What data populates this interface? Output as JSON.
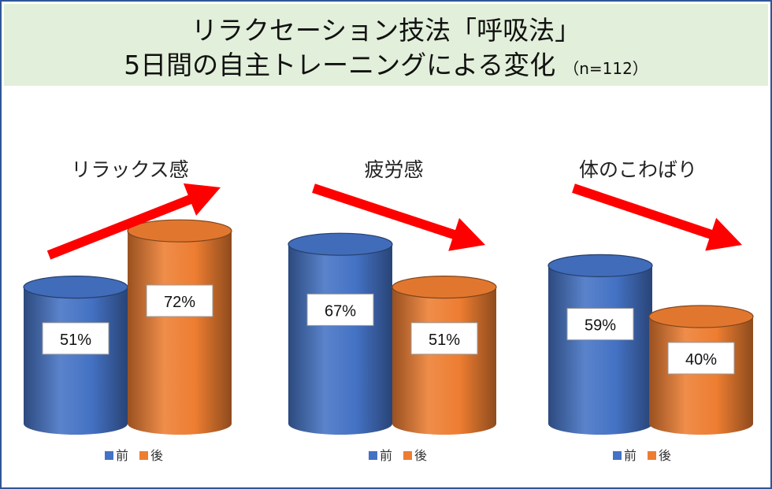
{
  "title": {
    "line1": "リラクセーション技法「呼吸法」",
    "line2": "5日間の自主トレーニングによる変化",
    "sample": "（n=112）"
  },
  "colors": {
    "before": "#4472c4",
    "after": "#ed7d31",
    "arrow": "#ff0000",
    "title_bg": "#e2efda",
    "frame": "#2f5597"
  },
  "chart_data": [
    {
      "type": "bar",
      "title": "リラックス感",
      "categories": [
        "前",
        "後"
      ],
      "values": [
        51,
        72
      ],
      "labels": [
        "51%",
        "72%"
      ],
      "trend": "up",
      "legend": [
        {
          "name": "前",
          "color": "#4472c4"
        },
        {
          "name": "後",
          "color": "#ed7d31"
        }
      ]
    },
    {
      "type": "bar",
      "title": "疲労感",
      "categories": [
        "前",
        "後"
      ],
      "values": [
        67,
        51
      ],
      "labels": [
        "67%",
        "51%"
      ],
      "trend": "down",
      "legend": [
        {
          "name": "前",
          "color": "#4472c4"
        },
        {
          "name": "後",
          "color": "#ed7d31"
        }
      ]
    },
    {
      "type": "bar",
      "title": "体のこわばり",
      "categories": [
        "前",
        "後"
      ],
      "values": [
        59,
        40
      ],
      "labels": [
        "59%",
        "40%"
      ],
      "trend": "down",
      "legend": [
        {
          "name": "前",
          "color": "#4472c4"
        },
        {
          "name": "後",
          "color": "#ed7d31"
        }
      ]
    }
  ]
}
